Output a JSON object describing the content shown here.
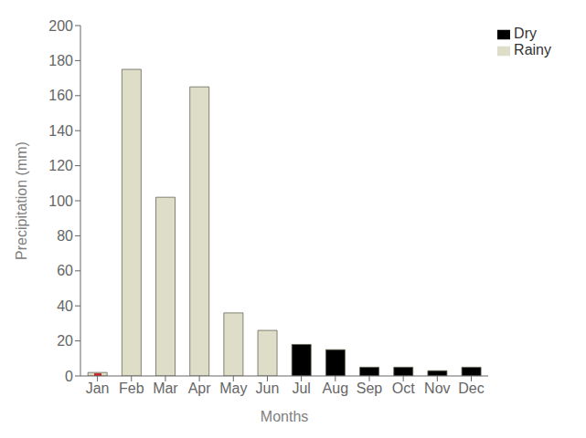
{
  "chart_data": {
    "type": "bar",
    "xlabel": "Months",
    "ylabel": "Precipitation (mm)",
    "categories": [
      "Jan",
      "Feb",
      "Mar",
      "Apr",
      "May",
      "Jun",
      "Jul",
      "Aug",
      "Sep",
      "Oct",
      "Nov",
      "Dec"
    ],
    "series": [
      {
        "name": "Rainy",
        "color": "#ddddc8",
        "values": [
          2,
          175,
          102,
          165,
          36,
          26,
          null,
          null,
          null,
          null,
          null,
          null
        ]
      },
      {
        "name": "Dry",
        "color": "#000000",
        "values": [
          null,
          null,
          null,
          null,
          null,
          null,
          18,
          15,
          5,
          5,
          3,
          5
        ]
      },
      {
        "color": "#cc2222",
        "values": [
          1.5,
          null,
          null,
          null,
          null,
          null,
          null,
          null,
          null,
          null,
          null,
          null
        ]
      }
    ],
    "ylim": [
      0,
      200
    ],
    "yticks": [
      0,
      20,
      40,
      60,
      80,
      100,
      120,
      140,
      160,
      180,
      200
    ],
    "grid": false,
    "legend": "upper right"
  }
}
